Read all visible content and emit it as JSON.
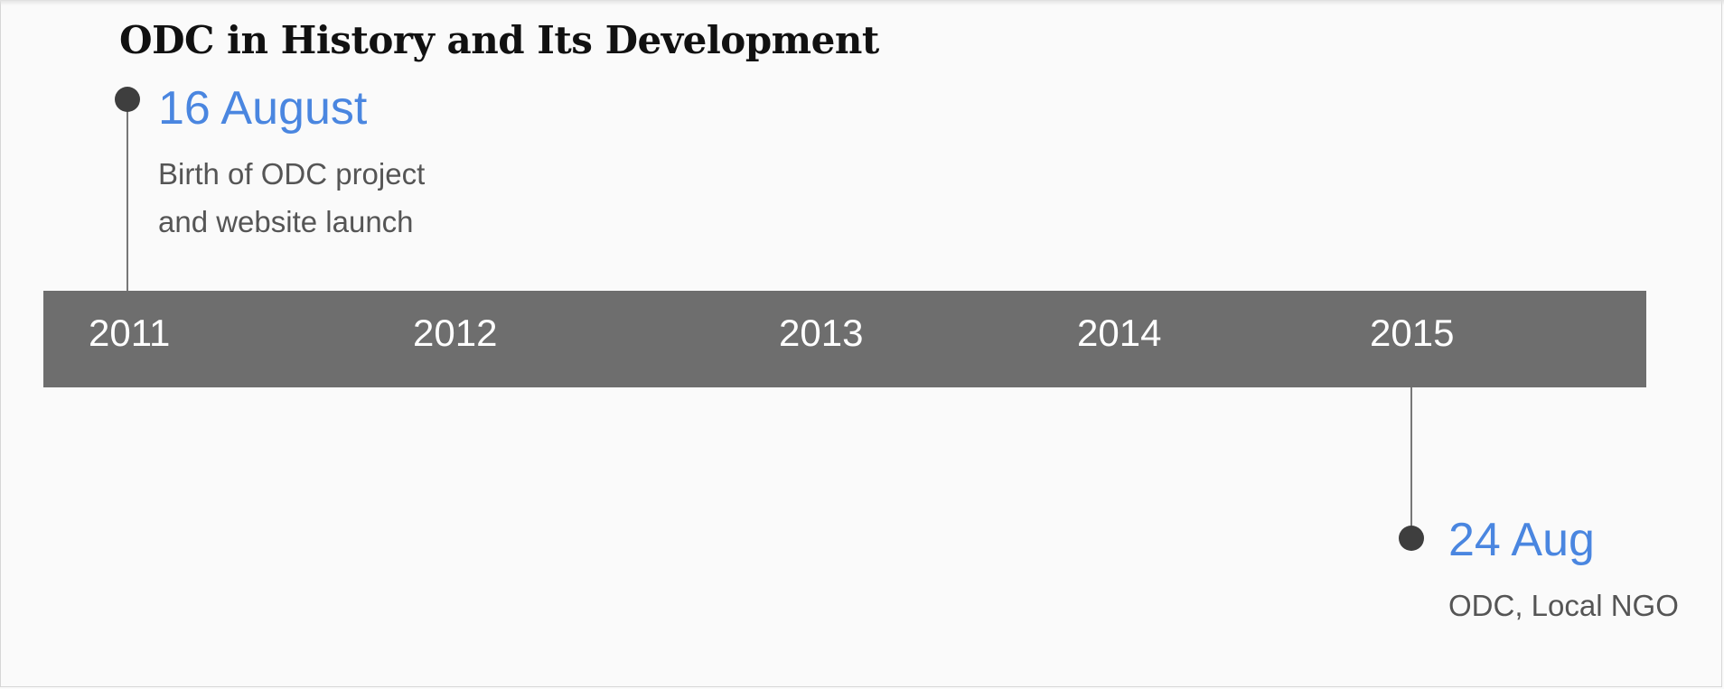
{
  "title": "ODC in History and Its Development",
  "timeline": {
    "years": [
      "2011",
      "2012",
      "2013",
      "2014",
      "2015"
    ]
  },
  "events": [
    {
      "date": "16 August",
      "description_lines": [
        "Birth of ODC project",
        "and website launch"
      ]
    },
    {
      "date": "24 Aug",
      "description_lines": [
        "ODC, Local NGO"
      ]
    }
  ],
  "colors": {
    "bar": "#6e6e6e",
    "date_accent": "#4a86e0",
    "dot": "#3e3e3e"
  }
}
